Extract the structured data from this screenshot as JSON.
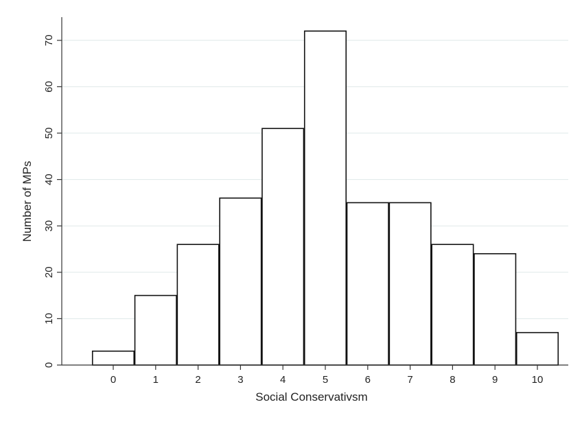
{
  "chart_data": {
    "type": "bar",
    "title": "",
    "xlabel": "Social Conservativsm",
    "ylabel": "Number of MPs",
    "categories": [
      "0",
      "1",
      "2",
      "3",
      "4",
      "5",
      "6",
      "7",
      "8",
      "9",
      "10"
    ],
    "values": [
      3,
      15,
      26,
      36,
      51,
      72,
      35,
      35,
      26,
      24,
      7
    ],
    "ylim": [
      0,
      75
    ],
    "yticks": [
      0,
      10,
      20,
      30,
      40,
      50,
      60,
      70
    ],
    "grid": true,
    "legend": "none",
    "colors": {
      "bar_fill": "#ffffff",
      "bar_edge": "#111111",
      "grid": "#dfe8e8"
    }
  }
}
